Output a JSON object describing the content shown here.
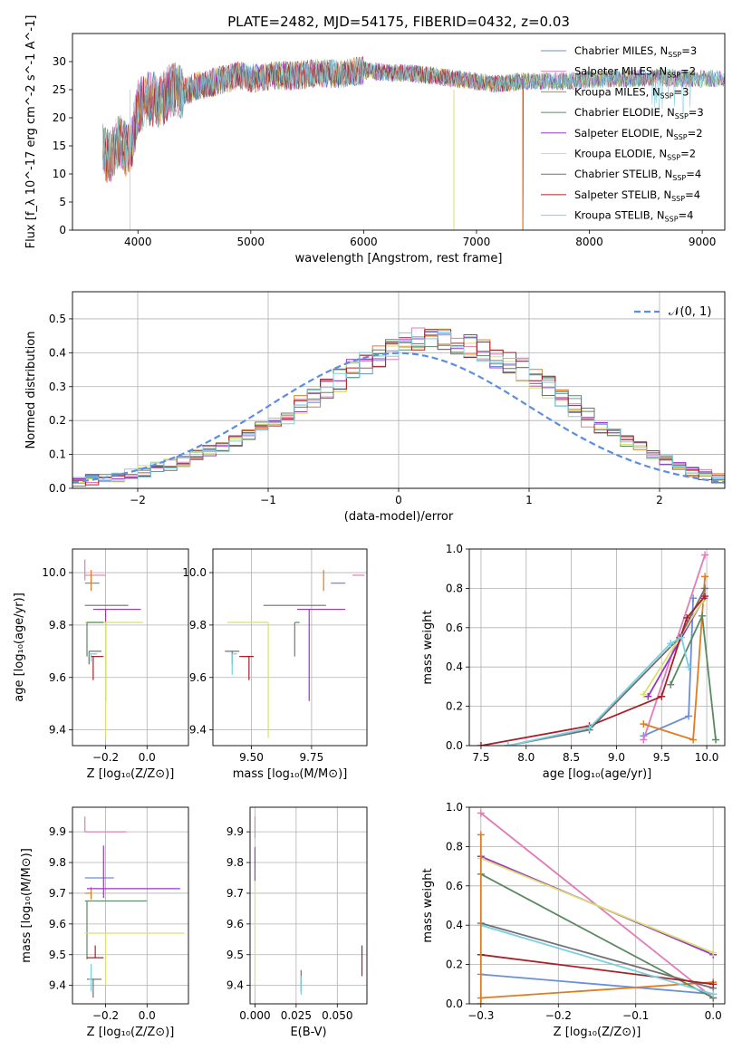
{
  "figure_title": "PLATE=2482, MJD=54175, FIBERID=0432, z=0.03",
  "colors": {
    "Chabrier MILES": "#6a8fd8",
    "Salpeter MILES": "#e07cb8",
    "Kroupa MILES": "#e07b20",
    "Chabrier ELODIE": "#5a8a60",
    "Salpeter ELODIE": "#9b35c8",
    "Kroupa ELODIE": "#d8e070",
    "Chabrier STELIB": "#707070",
    "Salpeter STELIB": "#a82028",
    "Kroupa STELIB": "#78d0e0"
  },
  "chart_data": [
    {
      "id": "spectrum",
      "type": "line",
      "xlabel": "wavelength [Angstrom, rest frame]",
      "ylabel": "Flux [f_λ 10^-17 erg cm^-2 s^-1 A^-1]",
      "xlim": [
        3420,
        9200
      ],
      "ylim": [
        0,
        35
      ],
      "xticks": [
        4000,
        5000,
        6000,
        7000,
        8000,
        9000
      ],
      "yticks": [
        0,
        5,
        10,
        15,
        20,
        25,
        30
      ],
      "legend_position": "upper right",
      "legend": [
        {
          "name": "Chabrier MILES",
          "nssp": "3"
        },
        {
          "name": "Salpeter MILES",
          "nssp": "2"
        },
        {
          "name": "Kroupa MILES",
          "nssp": "3"
        },
        {
          "name": "Chabrier ELODIE",
          "nssp": "3"
        },
        {
          "name": "Salpeter ELODIE",
          "nssp": "2"
        },
        {
          "name": "Kroupa ELODIE",
          "nssp": "2"
        },
        {
          "name": "Chabrier STELIB",
          "nssp": "4"
        },
        {
          "name": "Salpeter STELIB",
          "nssp": "4"
        },
        {
          "name": "Kroupa STELIB",
          "nssp": "4"
        }
      ],
      "envelope": {
        "x": [
          3690,
          3750,
          3800,
          3850,
          3900,
          3950,
          4000,
          4100,
          4200,
          4300,
          4400,
          4500,
          4600,
          4700,
          4800,
          4900,
          5000,
          5200,
          5400,
          5600,
          5800,
          6000,
          6200,
          6400,
          6600,
          6800,
          7000,
          7200,
          7400,
          7600,
          7800,
          8000,
          8200,
          8400,
          8600,
          8800,
          9000,
          9200
        ],
        "y": [
          14,
          13,
          15,
          16,
          14,
          16,
          22,
          23.5,
          23,
          25,
          24.5,
          25.5,
          26,
          26.5,
          27,
          27.5,
          27,
          27.5,
          27.5,
          28,
          27.8,
          28.5,
          28,
          28,
          27.5,
          27,
          26.5,
          26,
          26.5,
          26.5,
          26.5,
          26.8,
          27,
          27,
          27.2,
          27,
          27,
          27
        ]
      },
      "dips": [
        {
          "x": 6800,
          "y": 0
        },
        {
          "x": 7410,
          "y": 0
        },
        {
          "x": 3930,
          "y": 0
        }
      ]
    },
    {
      "id": "residuals",
      "type": "histogram",
      "xlabel": "(data-model)/error",
      "ylabel": "Normed distribution",
      "xlim": [
        -2.5,
        2.5
      ],
      "ylim": [
        0,
        0.58
      ],
      "xticks": [
        -2,
        -1,
        0,
        1,
        2
      ],
      "yticks": [
        0.0,
        0.1,
        0.2,
        0.3,
        0.4,
        0.5
      ],
      "gaussian_label": "𝒩(0, 1)",
      "bin_width": 0.1,
      "bin_start": -2.5,
      "base_hist": [
        0.02,
        0.025,
        0.03,
        0.035,
        0.04,
        0.05,
        0.06,
        0.07,
        0.08,
        0.1,
        0.11,
        0.12,
        0.14,
        0.16,
        0.18,
        0.2,
        0.22,
        0.24,
        0.27,
        0.3,
        0.32,
        0.35,
        0.37,
        0.39,
        0.41,
        0.43,
        0.44,
        0.45,
        0.44,
        0.43,
        0.42,
        0.41,
        0.39,
        0.37,
        0.35,
        0.33,
        0.3,
        0.27,
        0.24,
        0.21,
        0.18,
        0.16,
        0.14,
        0.12,
        0.1,
        0.08,
        0.06,
        0.05,
        0.04,
        0.03
      ]
    },
    {
      "id": "age_vs_Z",
      "type": "errorbar",
      "xlabel": "Z [log₁₀(Z/Z⊙)]",
      "ylabel": "age [log₁₀(age/yr)]",
      "xlim": [
        -0.36,
        0.2
      ],
      "ylim": [
        9.34,
        10.09
      ],
      "xticks": [
        -0.2,
        0.0
      ],
      "yticks": [
        9.4,
        9.6,
        9.8,
        10.0
      ],
      "points": [
        {
          "series": "Salpeter MILES",
          "x": -0.3,
          "y": 9.99,
          "xe": [
            0.0,
            0.1
          ],
          "ye": [
            0.02,
            0.06
          ]
        },
        {
          "series": "Chabrier MILES",
          "x": -0.28,
          "y": 9.96,
          "xe": [
            0.02,
            0.05
          ],
          "ye": [
            0.0,
            0.0
          ]
        },
        {
          "series": "Kroupa MILES",
          "x": -0.27,
          "y": 9.97,
          "xe": [
            0.0,
            0.0
          ],
          "ye": [
            0.04,
            0.04
          ]
        },
        {
          "series": "Chabrier STELIB",
          "x": -0.21,
          "y": 9.875,
          "xe": [
            0.09,
            0.12
          ],
          "ye": [
            0.0,
            0.0
          ]
        },
        {
          "series": "Salpeter ELODIE",
          "x": -0.2,
          "y": 9.86,
          "xe": [
            0.06,
            0.17
          ],
          "ye": [
            0.35,
            0.0
          ]
        },
        {
          "series": "Kroupa ELODIE",
          "x": -0.2,
          "y": 9.81,
          "xe": [
            0.1,
            0.18
          ],
          "ye": [
            0.44,
            0.0
          ]
        },
        {
          "series": "Chabrier ELODIE",
          "x": -0.29,
          "y": 9.81,
          "xe": [
            0.0,
            0.08
          ],
          "ye": [
            0.13,
            0.0
          ]
        },
        {
          "series": "Chabrier STELIB",
          "x": -0.28,
          "y": 9.7,
          "xe": [
            0.0,
            0.06
          ],
          "ye": [
            0.05,
            0.0
          ]
        },
        {
          "series": "Kroupa STELIB",
          "x": -0.27,
          "y": 9.69,
          "xe": [
            0.01,
            0.03
          ],
          "ye": [
            0.03,
            0.0
          ]
        },
        {
          "series": "Salpeter STELIB",
          "x": -0.26,
          "y": 9.68,
          "xe": [
            0.01,
            0.05
          ],
          "ye": [
            0.09,
            0.0
          ]
        }
      ]
    },
    {
      "id": "age_vs_mass",
      "type": "errorbar",
      "xlabel": "mass [log₁₀(M/M⊙)]",
      "ylabel": "",
      "xlim": [
        9.34,
        9.98
      ],
      "ylim": [
        9.34,
        10.09
      ],
      "xticks": [
        9.5,
        9.75
      ],
      "yticks": [
        9.4,
        9.6,
        9.8,
        10.0
      ],
      "points": [
        {
          "series": "Salpeter MILES",
          "x": 9.92,
          "y": 9.99,
          "xe": [
            0.0,
            0.05
          ],
          "ye": [
            0.0,
            0.0
          ]
        },
        {
          "series": "Chabrier MILES",
          "x": 9.83,
          "y": 9.96,
          "xe": [
            0.0,
            0.06
          ],
          "ye": [
            0.0,
            0.0
          ]
        },
        {
          "series": "Kroupa MILES",
          "x": 9.8,
          "y": 9.97,
          "xe": [
            0.0,
            0.0
          ],
          "ye": [
            0.04,
            0.04
          ]
        },
        {
          "series": "Chabrier STELIB",
          "x": 9.68,
          "y": 9.875,
          "xe": [
            0.13,
            0.13
          ],
          "ye": [
            0.0,
            0.0
          ]
        },
        {
          "series": "Salpeter ELODIE",
          "x": 9.74,
          "y": 9.86,
          "xe": [
            0.05,
            0.15
          ],
          "ye": [
            0.35,
            0.0
          ]
        },
        {
          "series": "Kroupa ELODIE",
          "x": 9.57,
          "y": 9.81,
          "xe": [
            0.17,
            0.0
          ],
          "ye": [
            0.44,
            0.0
          ]
        },
        {
          "series": "Chabrier ELODIE",
          "x": 9.68,
          "y": 9.81,
          "xe": [
            0.0,
            0.02
          ],
          "ye": [
            0.13,
            0.0
          ]
        },
        {
          "series": "Chabrier STELIB",
          "x": 9.42,
          "y": 9.7,
          "xe": [
            0.03,
            0.03
          ],
          "ye": [
            0.05,
            0.0
          ]
        },
        {
          "series": "Kroupa STELIB",
          "x": 9.42,
          "y": 9.69,
          "xe": [
            0.0,
            0.02
          ],
          "ye": [
            0.08,
            0.0
          ]
        },
        {
          "series": "Salpeter STELIB",
          "x": 9.49,
          "y": 9.68,
          "xe": [
            0.04,
            0.02
          ],
          "ye": [
            0.09,
            0.0
          ]
        }
      ]
    },
    {
      "id": "massweight_vs_age",
      "type": "line",
      "xlabel": "age [log₁₀(age/yr)]",
      "ylabel": "mass weight",
      "xlim": [
        7.37,
        10.2
      ],
      "ylim": [
        0,
        1
      ],
      "xticks": [
        7.5,
        8.0,
        8.5,
        9.0,
        9.5,
        10.0
      ],
      "yticks": [
        0.0,
        0.2,
        0.4,
        0.6,
        0.8,
        1.0
      ],
      "series": [
        {
          "name": "Chabrier MILES",
          "x": [
            9.3,
            9.8,
            9.85
          ],
          "y": [
            0.05,
            0.15,
            0.75
          ]
        },
        {
          "name": "Salpeter MILES",
          "x": [
            9.3,
            9.98
          ],
          "y": [
            0.03,
            0.97
          ]
        },
        {
          "name": "Kroupa MILES",
          "x": [
            9.3,
            9.85,
            9.98
          ],
          "y": [
            0.11,
            0.03,
            0.86
          ]
        },
        {
          "name": "Chabrier ELODIE",
          "x": [
            9.6,
            9.95,
            10.1
          ],
          "y": [
            0.31,
            0.66,
            0.03
          ]
        },
        {
          "name": "Salpeter ELODIE",
          "x": [
            9.35,
            9.97
          ],
          "y": [
            0.25,
            0.75
          ]
        },
        {
          "name": "Kroupa ELODIE",
          "x": [
            9.3,
            9.96
          ],
          "y": [
            0.26,
            0.74
          ]
        },
        {
          "name": "Chabrier STELIB",
          "x": [
            7.8,
            8.7,
            9.7,
            9.98
          ],
          "y": [
            0.0,
            0.08,
            0.55,
            0.8
          ]
        },
        {
          "name": "Salpeter STELIB",
          "x": [
            7.5,
            8.7,
            9.5,
            9.78,
            9.98
          ],
          "y": [
            0.0,
            0.1,
            0.25,
            0.65,
            0.76
          ]
        },
        {
          "name": "Kroupa STELIB",
          "x": [
            7.8,
            8.7,
            9.6,
            9.72,
            9.8
          ],
          "y": [
            0.0,
            0.09,
            0.52,
            0.55,
            0.4
          ]
        }
      ]
    },
    {
      "id": "mass_vs_Z",
      "type": "errorbar",
      "xlabel": "Z [log₁₀(Z/Z⊙)]",
      "ylabel": "mass [log₁₀(M/M⊙)]",
      "xlim": [
        -0.36,
        0.2
      ],
      "ylim": [
        9.34,
        9.98
      ],
      "xticks": [
        -0.2,
        0.0
      ],
      "yticks": [
        9.4,
        9.5,
        9.6,
        9.7,
        9.8,
        9.9
      ],
      "points": [
        {
          "series": "Salpeter MILES",
          "x": -0.3,
          "y": 9.9,
          "xe": [
            0.0,
            0.2
          ],
          "ye": [
            0.0,
            0.05
          ]
        },
        {
          "series": "Chabrier MILES",
          "x": -0.28,
          "y": 9.75,
          "xe": [
            0.02,
            0.12
          ],
          "ye": [
            0.0,
            0.0
          ]
        },
        {
          "series": "Kroupa MILES",
          "x": -0.27,
          "y": 9.7,
          "xe": [
            0.03,
            0.0
          ],
          "ye": [
            0.02,
            0.02
          ]
        },
        {
          "series": "Salpeter ELODIE",
          "x": -0.21,
          "y": 9.715,
          "xe": [
            0.08,
            0.37
          ],
          "ye": [
            0.03,
            0.14
          ]
        },
        {
          "series": "Chabrier ELODIE",
          "x": -0.29,
          "y": 9.675,
          "xe": [
            0.01,
            0.29
          ],
          "ye": [
            0.19,
            0.0
          ]
        },
        {
          "series": "Kroupa ELODIE",
          "x": -0.2,
          "y": 9.57,
          "xe": [
            0.1,
            0.38
          ],
          "ye": [
            0.17,
            0.0
          ]
        },
        {
          "series": "Salpeter STELIB",
          "x": -0.25,
          "y": 9.49,
          "xe": [
            0.04,
            0.04
          ],
          "ye": [
            0.0,
            0.04
          ]
        },
        {
          "series": "Chabrier STELIB",
          "x": -0.26,
          "y": 9.42,
          "xe": [
            0.03,
            0.04
          ],
          "ye": [
            0.06,
            0.0
          ]
        },
        {
          "series": "Kroupa STELIB",
          "x": -0.27,
          "y": 9.42,
          "xe": [
            0.01,
            0.0
          ],
          "ye": [
            0.04,
            0.05
          ]
        }
      ]
    },
    {
      "id": "mass_vs_ebv",
      "type": "errorbar",
      "xlabel": "E(B-V)",
      "ylabel": "",
      "xlim": [
        -0.003,
        0.068
      ],
      "ylim": [
        9.34,
        9.98
      ],
      "xticks": [
        0.0,
        0.025,
        0.05
      ],
      "yticks": [
        9.4,
        9.5,
        9.6,
        9.7,
        9.8,
        9.9
      ],
      "points": [
        {
          "series": "Salpeter MILES",
          "x": 0.0,
          "y": 9.9,
          "xe": [
            0,
            0
          ],
          "ye": [
            0.02,
            0.05
          ]
        },
        {
          "series": "Salpeter ELODIE",
          "x": 0.0,
          "y": 9.8,
          "xe": [
            0,
            0
          ],
          "ye": [
            0.06,
            0.05
          ]
        },
        {
          "series": "Kroupa ELODIE",
          "x": 0.0,
          "y": 9.6,
          "xe": [
            0,
            0
          ],
          "ye": [
            0.2,
            0.14
          ]
        },
        {
          "series": "Chabrier STELIB",
          "x": 0.028,
          "y": 9.42,
          "xe": [
            0,
            0
          ],
          "ye": [
            0.04,
            0.03
          ]
        },
        {
          "series": "Kroupa STELIB",
          "x": 0.028,
          "y": 9.4,
          "xe": [
            0,
            0
          ],
          "ye": [
            0.03,
            0.03
          ]
        },
        {
          "series": "Salpeter STELIB",
          "x": 0.065,
          "y": 9.48,
          "xe": [
            0,
            0
          ],
          "ye": [
            0.05,
            0.05
          ]
        }
      ]
    },
    {
      "id": "massweight_vs_Z",
      "type": "line",
      "xlabel": "Z [log₁₀(Z/Z⊙)]",
      "ylabel": "mass weight",
      "xlim": [
        -0.315,
        0.015
      ],
      "ylim": [
        0,
        1
      ],
      "xticks": [
        -0.3,
        -0.2,
        -0.1,
        0.0
      ],
      "yticks": [
        0.0,
        0.2,
        0.4,
        0.6,
        0.8,
        1.0
      ],
      "series": [
        {
          "name": "Chabrier MILES",
          "x": [
            -0.3,
            0.0
          ],
          "y": [
            0.15,
            0.05
          ]
        },
        {
          "name": "Salpeter MILES",
          "x": [
            -0.3,
            0.0
          ],
          "y": [
            0.97,
            0.03
          ]
        },
        {
          "name": "Kroupa MILES",
          "x": [
            -0.3,
            0.0
          ],
          "y": [
            0.03,
            0.11
          ]
        },
        {
          "name": "Chabrier ELODIE",
          "x": [
            -0.3,
            0.0
          ],
          "y": [
            0.66,
            0.03
          ]
        },
        {
          "name": "Salpeter ELODIE",
          "x": [
            -0.3,
            0.0
          ],
          "y": [
            0.75,
            0.25
          ]
        },
        {
          "name": "Kroupa ELODIE",
          "x": [
            -0.3,
            0.0
          ],
          "y": [
            0.74,
            0.26
          ]
        },
        {
          "name": "Chabrier STELIB",
          "x": [
            -0.3,
            0.0
          ],
          "y": [
            0.41,
            0.08
          ]
        },
        {
          "name": "Salpeter STELIB",
          "x": [
            -0.3,
            0.0
          ],
          "y": [
            0.25,
            0.1
          ]
        },
        {
          "name": "Kroupa STELIB",
          "x": [
            -0.3,
            0.0
          ],
          "y": [
            0.4,
            0.05
          ]
        },
        {
          "name": "Kroupa MILES",
          "x": [
            -0.3,
            -0.3
          ],
          "y": [
            0.0,
            0.86
          ]
        }
      ]
    }
  ]
}
